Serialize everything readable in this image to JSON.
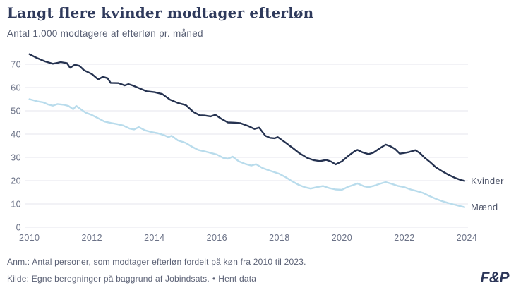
{
  "header": {
    "title": "Langt flere kvinder modtager efterløn",
    "subtitle": "Antal 1.000 modtagere af efterløn pr. måned"
  },
  "footer": {
    "anm": "Anm.: Antal personer, som modtager efterløn fordelt på køn fra 2010 til 2023.",
    "kilde": "Kilde: Egne beregninger på baggrund af Jobindsats.",
    "separator": "•",
    "link_label": "Hent data"
  },
  "logo": {
    "text": "F&P"
  },
  "colors": {
    "title": "#2f3a5c",
    "kvinder_line": "#253250",
    "maend_line": "#b9dcec",
    "grid": "#e4e4ee",
    "axis_text": "#6b7287"
  },
  "chart_data": {
    "type": "line",
    "title": "Langt flere kvinder modtager efterløn",
    "subtitle": "Antal 1.000 modtagere af efterløn pr. måned",
    "xlabel": "",
    "ylabel": "Antal 1.000 modtagere",
    "xlim": [
      2010,
      2024.2
    ],
    "ylim": [
      0,
      75
    ],
    "x_ticks": [
      2010,
      2012,
      2014,
      2016,
      2018,
      2020,
      2022,
      2024
    ],
    "y_ticks": [
      0,
      10,
      20,
      30,
      40,
      50,
      60,
      70
    ],
    "grid": true,
    "legend_position": "line-end-labels",
    "series": [
      {
        "name": "Kvinder",
        "color": "#253250",
        "points": [
          [
            2010.0,
            74.3
          ],
          [
            2010.25,
            72.6
          ],
          [
            2010.5,
            71.2
          ],
          [
            2010.75,
            70.2
          ],
          [
            2010.9,
            70.6
          ],
          [
            2011.0,
            70.9
          ],
          [
            2011.2,
            70.5
          ],
          [
            2011.3,
            68.5
          ],
          [
            2011.45,
            69.8
          ],
          [
            2011.6,
            69.3
          ],
          [
            2011.75,
            67.4
          ],
          [
            2012.0,
            65.8
          ],
          [
            2012.2,
            63.5
          ],
          [
            2012.35,
            64.6
          ],
          [
            2012.5,
            64.0
          ],
          [
            2012.6,
            62.0
          ],
          [
            2012.85,
            61.9
          ],
          [
            2013.05,
            60.9
          ],
          [
            2013.17,
            61.5
          ],
          [
            2013.3,
            60.9
          ],
          [
            2013.5,
            59.8
          ],
          [
            2013.75,
            58.4
          ],
          [
            2014.0,
            58.0
          ],
          [
            2014.25,
            57.2
          ],
          [
            2014.5,
            54.8
          ],
          [
            2014.75,
            53.4
          ],
          [
            2015.0,
            52.5
          ],
          [
            2015.25,
            49.5
          ],
          [
            2015.45,
            48.1
          ],
          [
            2015.6,
            48.0
          ],
          [
            2015.8,
            47.6
          ],
          [
            2015.95,
            48.3
          ],
          [
            2016.15,
            46.5
          ],
          [
            2016.35,
            45.0
          ],
          [
            2016.55,
            44.9
          ],
          [
            2016.75,
            44.7
          ],
          [
            2017.0,
            43.5
          ],
          [
            2017.2,
            42.2
          ],
          [
            2017.35,
            42.8
          ],
          [
            2017.55,
            39.3
          ],
          [
            2017.7,
            38.4
          ],
          [
            2017.85,
            38.2
          ],
          [
            2017.95,
            38.7
          ],
          [
            2018.2,
            36.3
          ],
          [
            2018.45,
            33.8
          ],
          [
            2018.65,
            31.7
          ],
          [
            2018.9,
            29.7
          ],
          [
            2019.1,
            28.8
          ],
          [
            2019.3,
            28.4
          ],
          [
            2019.5,
            28.9
          ],
          [
            2019.65,
            28.2
          ],
          [
            2019.8,
            27.0
          ],
          [
            2020.0,
            28.3
          ],
          [
            2020.2,
            30.6
          ],
          [
            2020.4,
            32.6
          ],
          [
            2020.5,
            33.2
          ],
          [
            2020.65,
            32.2
          ],
          [
            2020.85,
            31.4
          ],
          [
            2021.0,
            32.0
          ],
          [
            2021.2,
            33.8
          ],
          [
            2021.4,
            35.5
          ],
          [
            2021.55,
            34.8
          ],
          [
            2021.7,
            33.6
          ],
          [
            2021.85,
            31.6
          ],
          [
            2022.0,
            31.9
          ],
          [
            2022.15,
            32.3
          ],
          [
            2022.35,
            33.1
          ],
          [
            2022.5,
            31.8
          ],
          [
            2022.65,
            29.8
          ],
          [
            2022.8,
            28.2
          ],
          [
            2023.0,
            25.8
          ],
          [
            2023.2,
            24.1
          ],
          [
            2023.4,
            22.6
          ],
          [
            2023.6,
            21.3
          ],
          [
            2023.8,
            20.3
          ],
          [
            2023.92,
            19.9
          ]
        ]
      },
      {
        "name": "Mænd",
        "color": "#b9dcec",
        "points": [
          [
            2010.0,
            55.0
          ],
          [
            2010.25,
            54.1
          ],
          [
            2010.45,
            53.6
          ],
          [
            2010.6,
            52.7
          ],
          [
            2010.75,
            52.2
          ],
          [
            2010.9,
            52.9
          ],
          [
            2011.1,
            52.6
          ],
          [
            2011.25,
            52.1
          ],
          [
            2011.4,
            50.7
          ],
          [
            2011.5,
            52.1
          ],
          [
            2011.65,
            50.6
          ],
          [
            2011.8,
            49.2
          ],
          [
            2012.0,
            48.2
          ],
          [
            2012.2,
            46.8
          ],
          [
            2012.4,
            45.4
          ],
          [
            2012.6,
            44.8
          ],
          [
            2012.8,
            44.3
          ],
          [
            2013.0,
            43.7
          ],
          [
            2013.2,
            42.4
          ],
          [
            2013.35,
            42.0
          ],
          [
            2013.5,
            43.0
          ],
          [
            2013.7,
            41.6
          ],
          [
            2013.9,
            40.9
          ],
          [
            2014.1,
            40.4
          ],
          [
            2014.3,
            39.6
          ],
          [
            2014.45,
            38.7
          ],
          [
            2014.55,
            39.3
          ],
          [
            2014.75,
            37.3
          ],
          [
            2015.0,
            36.2
          ],
          [
            2015.2,
            34.6
          ],
          [
            2015.4,
            33.2
          ],
          [
            2015.6,
            32.6
          ],
          [
            2015.8,
            31.9
          ],
          [
            2016.0,
            31.2
          ],
          [
            2016.2,
            29.8
          ],
          [
            2016.35,
            29.4
          ],
          [
            2016.5,
            30.3
          ],
          [
            2016.7,
            28.3
          ],
          [
            2016.9,
            27.2
          ],
          [
            2017.1,
            26.5
          ],
          [
            2017.25,
            27.1
          ],
          [
            2017.45,
            25.5
          ],
          [
            2017.65,
            24.5
          ],
          [
            2017.85,
            23.6
          ],
          [
            2018.0,
            22.9
          ],
          [
            2018.2,
            21.5
          ],
          [
            2018.4,
            19.8
          ],
          [
            2018.6,
            18.3
          ],
          [
            2018.8,
            17.2
          ],
          [
            2019.0,
            16.6
          ],
          [
            2019.2,
            17.2
          ],
          [
            2019.4,
            17.7
          ],
          [
            2019.6,
            16.8
          ],
          [
            2019.8,
            16.2
          ],
          [
            2020.0,
            16.1
          ],
          [
            2020.2,
            17.4
          ],
          [
            2020.4,
            18.3
          ],
          [
            2020.5,
            18.8
          ],
          [
            2020.7,
            17.6
          ],
          [
            2020.85,
            17.2
          ],
          [
            2021.0,
            17.7
          ],
          [
            2021.2,
            18.6
          ],
          [
            2021.4,
            19.4
          ],
          [
            2021.6,
            18.6
          ],
          [
            2021.8,
            17.7
          ],
          [
            2022.0,
            17.2
          ],
          [
            2022.2,
            16.2
          ],
          [
            2022.4,
            15.5
          ],
          [
            2022.6,
            14.7
          ],
          [
            2022.8,
            13.4
          ],
          [
            2023.0,
            12.2
          ],
          [
            2023.2,
            11.2
          ],
          [
            2023.4,
            10.4
          ],
          [
            2023.6,
            9.7
          ],
          [
            2023.8,
            9.0
          ],
          [
            2023.92,
            8.6
          ]
        ]
      }
    ]
  }
}
